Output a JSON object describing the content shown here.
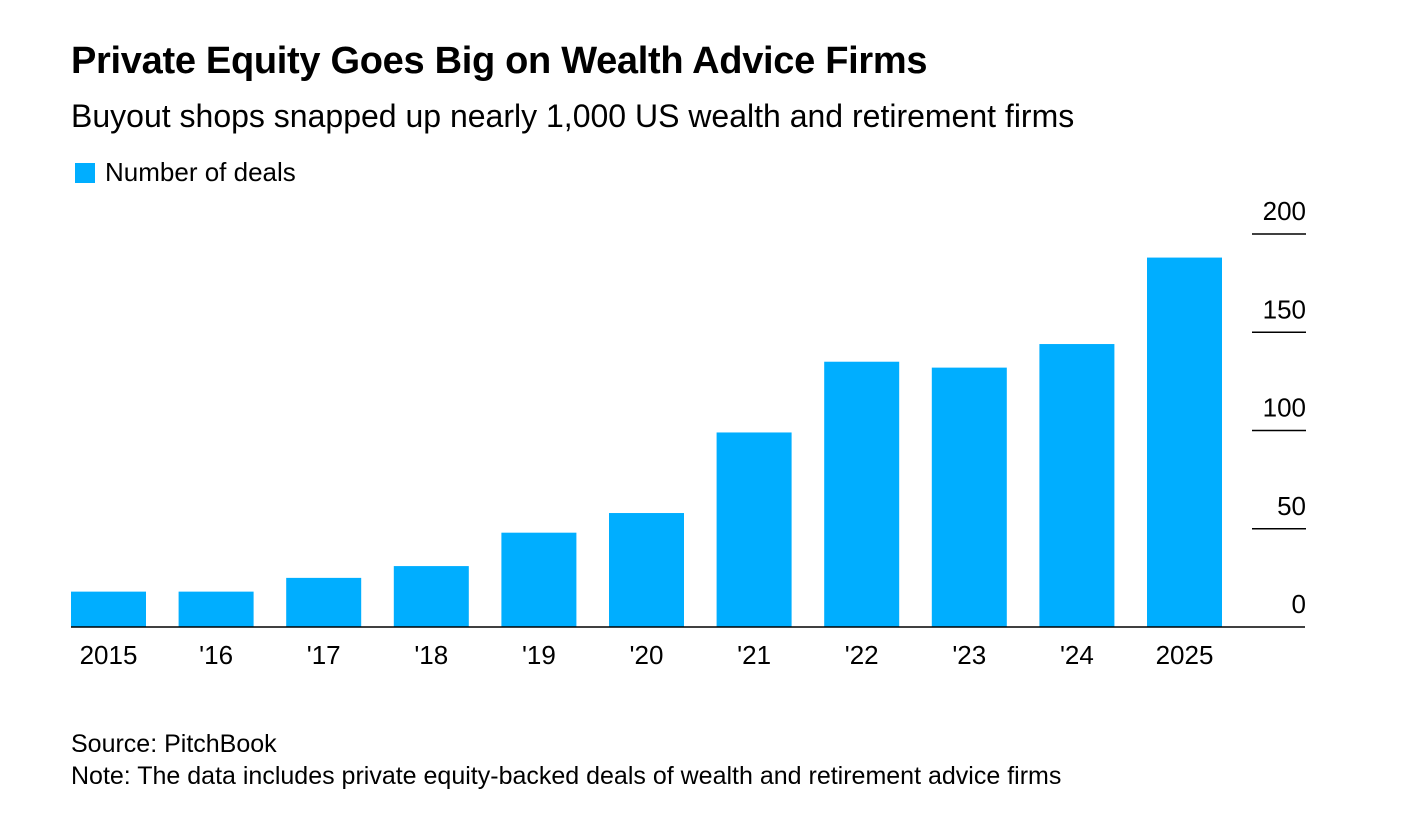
{
  "header": {
    "title": "Private Equity Goes Big on Wealth Advice Firms",
    "subtitle": "Buyout shops snapped up nearly 1,000 US wealth and retirement firms"
  },
  "footer": {
    "source": "Source: PitchBook",
    "note": "Note: The data includes private equity-backed deals of wealth and retirement advice firms"
  },
  "colors": {
    "bar": "#00aeff",
    "axis": "#000000",
    "text": "#000000"
  },
  "chart_data": {
    "type": "bar",
    "title": "Private Equity Goes Big on Wealth Advice Firms",
    "subtitle": "Buyout shops snapped up nearly 1,000 US wealth and retirement firms",
    "xlabel": "",
    "ylabel": "",
    "categories": [
      "2015",
      "'16",
      "'17",
      "'18",
      "'19",
      "'20",
      "'21",
      "'22",
      "'23",
      "'24",
      "2025"
    ],
    "series": [
      {
        "name": "Number of deals",
        "values": [
          18,
          18,
          25,
          31,
          48,
          58,
          99,
          135,
          132,
          144,
          188
        ]
      }
    ],
    "ylim": [
      0,
      200
    ],
    "yticks": [
      0,
      50,
      100,
      150,
      200
    ],
    "grid": false,
    "legend": "top-left",
    "y_axis_side": "right"
  }
}
